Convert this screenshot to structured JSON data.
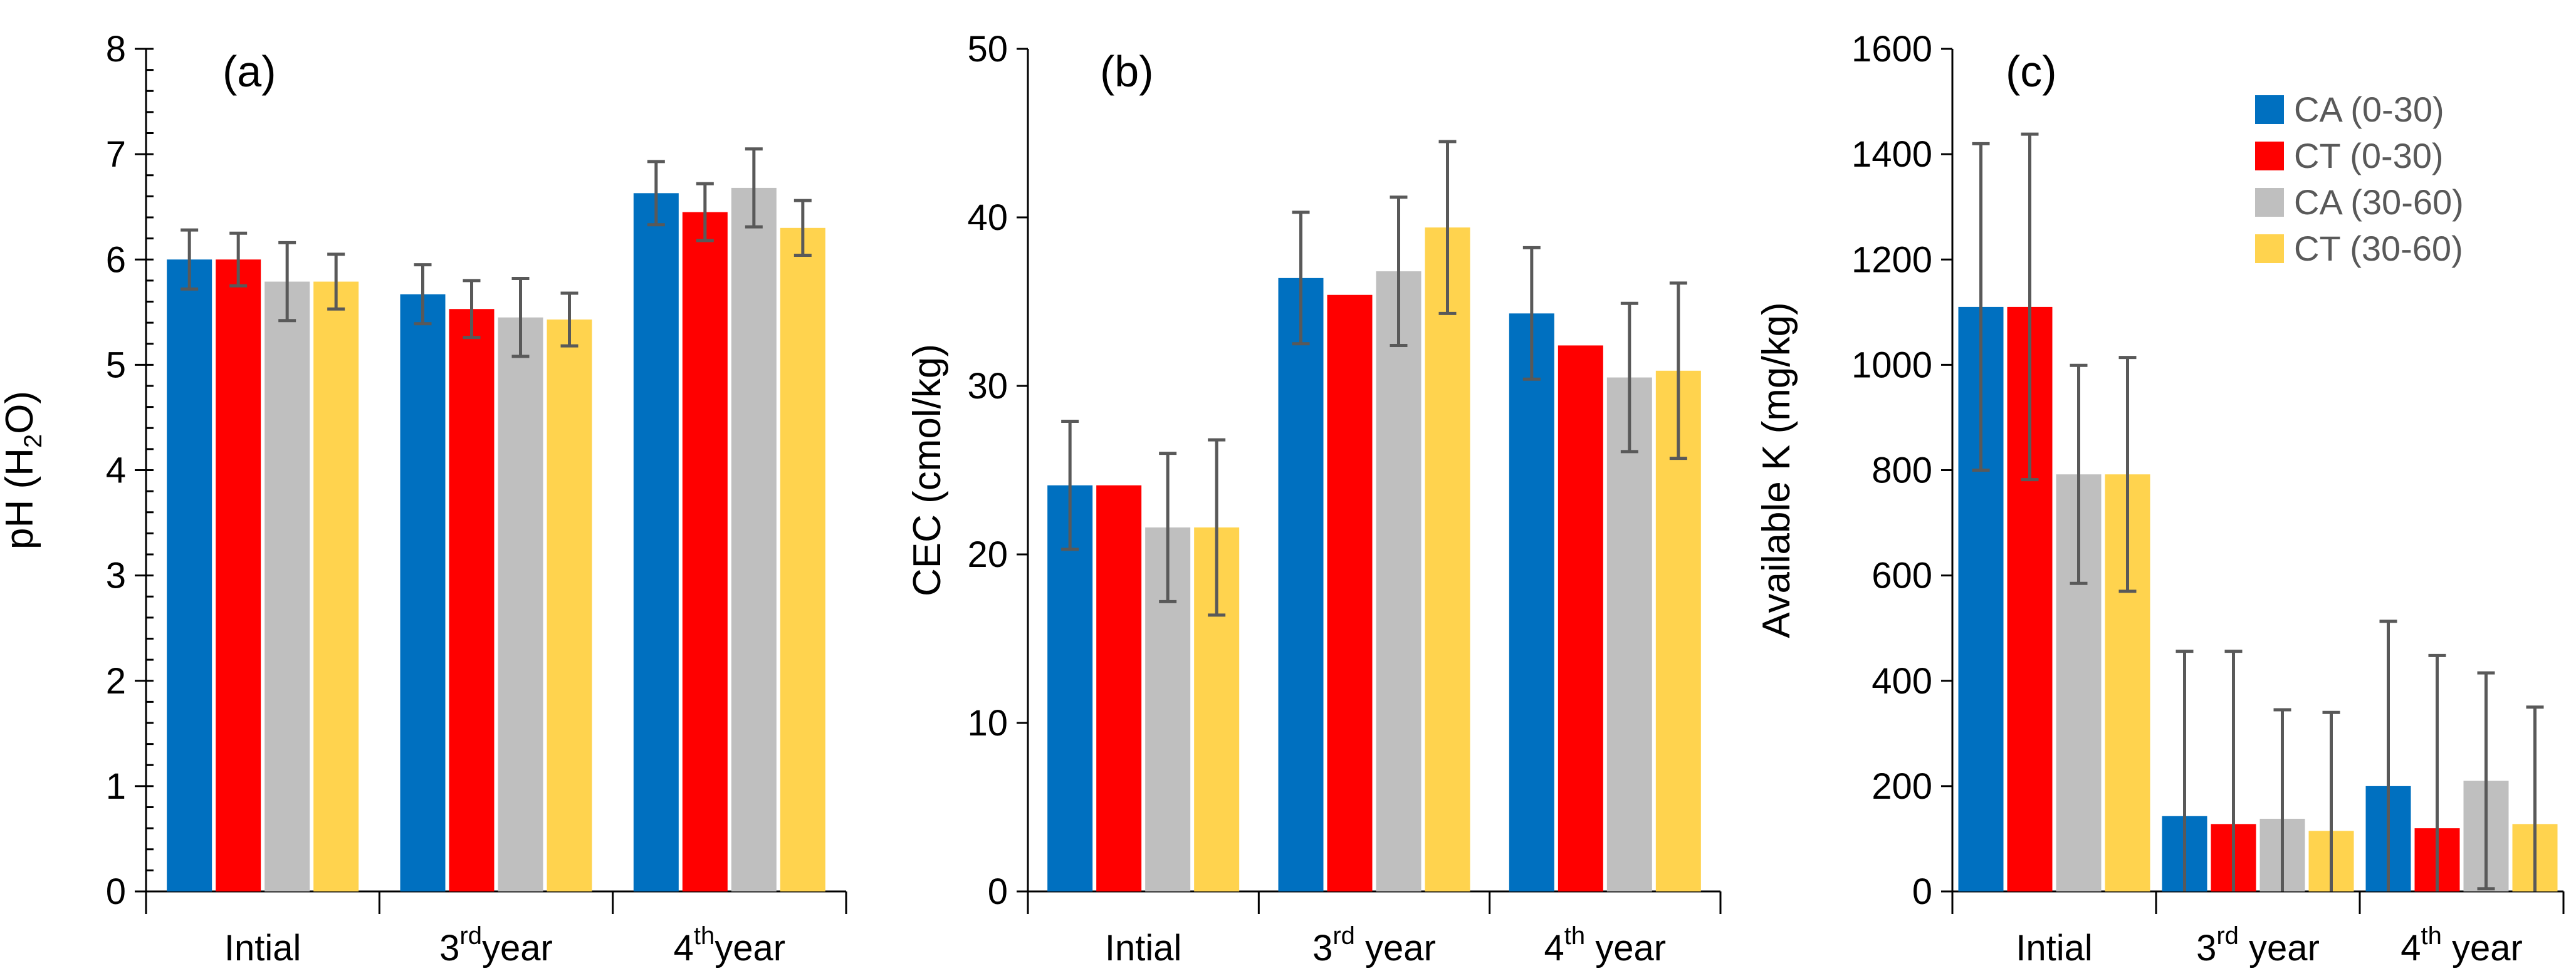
{
  "chart_data": [
    {
      "type": "bar",
      "panel_label": "(a)",
      "ylabel": "pH (H",
      "ylabel_sub": "2",
      "ylabel_end": "O)",
      "ylim": [
        0,
        8
      ],
      "yticks": [
        0,
        1,
        2,
        3,
        4,
        5,
        6,
        7,
        8
      ],
      "yminor_step": 0.2,
      "categories": [
        {
          "prefix": "Intial",
          "sup": "",
          "suffix": ""
        },
        {
          "prefix": "3",
          "sup": "rd",
          "suffix": "year"
        },
        {
          "prefix": "4",
          "sup": "th",
          "suffix": "year"
        }
      ],
      "series": [
        {
          "name": "CA (0-30)",
          "color": "#0070C0",
          "values": [
            6.0,
            5.67,
            6.63
          ],
          "errors": [
            0.28,
            0.28,
            0.3
          ]
        },
        {
          "name": "CT (0-30)",
          "color": "#FF0000",
          "values": [
            6.0,
            5.53,
            6.45
          ],
          "errors": [
            0.25,
            0.27,
            0.27
          ]
        },
        {
          "name": "CA (30-60)",
          "color": "#BFBFBF",
          "values": [
            5.79,
            5.45,
            6.68
          ],
          "errors": [
            0.37,
            0.37,
            0.37
          ]
        },
        {
          "name": "CT (30-60)",
          "color": "#FFD34E",
          "values": [
            5.79,
            5.43,
            6.3
          ],
          "errors": [
            0.26,
            0.25,
            0.26
          ]
        }
      ]
    },
    {
      "type": "bar",
      "panel_label": "(b)",
      "ylabel": "CEC (cmol/kg)",
      "ylabel_sub": "",
      "ylabel_end": "",
      "ylim": [
        0,
        50
      ],
      "yticks": [
        0,
        10,
        20,
        30,
        40,
        50
      ],
      "yminor_step": null,
      "categories": [
        {
          "prefix": "Intial",
          "sup": "",
          "suffix": ""
        },
        {
          "prefix": "3",
          "sup": "rd",
          "suffix": " year"
        },
        {
          "prefix": "4",
          "sup": "th",
          "suffix": " year"
        }
      ],
      "series": [
        {
          "name": "CA (0-30)",
          "color": "#0070C0",
          "values": [
            24.1,
            36.4,
            34.3
          ],
          "errors": [
            3.8,
            3.9,
            3.9
          ]
        },
        {
          "name": "CT (0-30)",
          "color": "#FF0000",
          "values": [
            24.1,
            35.4,
            32.4
          ],
          "errors": [
            0,
            0,
            0
          ]
        },
        {
          "name": "CA (30-60)",
          "color": "#BFBFBF",
          "values": [
            21.6,
            36.8,
            30.5
          ],
          "errors": [
            4.4,
            4.4,
            4.4
          ]
        },
        {
          "name": "CT (30-60)",
          "color": "#FFD34E",
          "values": [
            21.6,
            39.4,
            30.9
          ],
          "errors": [
            5.2,
            5.1,
            5.2
          ]
        }
      ]
    },
    {
      "type": "bar",
      "panel_label": "(c)",
      "ylabel": "Available K (mg/kg)",
      "ylabel_sub": "",
      "ylabel_end": "",
      "ylim": [
        0,
        1600
      ],
      "yticks": [
        0,
        200,
        400,
        600,
        800,
        1000,
        1200,
        1400,
        1600
      ],
      "yminor_step": null,
      "categories": [
        {
          "prefix": "Intial",
          "sup": "",
          "suffix": ""
        },
        {
          "prefix": "3",
          "sup": "rd",
          "suffix": " year"
        },
        {
          "prefix": "4",
          "sup": "th",
          "suffix": " year"
        }
      ],
      "series": [
        {
          "name": "CA (0-30)",
          "color": "#0070C0",
          "values": [
            1110,
            143,
            200
          ],
          "errors": [
            310,
            313,
            313
          ]
        },
        {
          "name": "CT (0-30)",
          "color": "#FF0000",
          "values": [
            1110,
            128,
            120
          ],
          "errors": [
            328,
            328,
            328
          ]
        },
        {
          "name": "CA (30-60)",
          "color": "#BFBFBF",
          "values": [
            792,
            138,
            210
          ],
          "errors": [
            207,
            207,
            205
          ]
        },
        {
          "name": "CT (30-60)",
          "color": "#FFD34E",
          "values": [
            792,
            115,
            128
          ],
          "errors": [
            222,
            225,
            222
          ]
        }
      ]
    }
  ],
  "legend": {
    "entries": [
      "CA (0-30)",
      "CT (0-30)",
      "CA (30-60)",
      "CT (30-60)"
    ],
    "colors": [
      "#0070C0",
      "#FF0000",
      "#BFBFBF",
      "#FFD34E"
    ]
  }
}
